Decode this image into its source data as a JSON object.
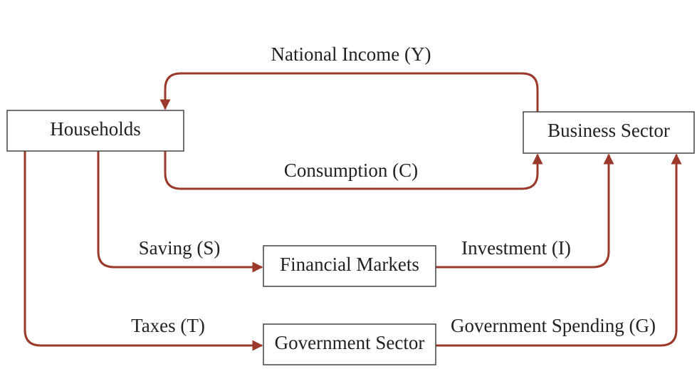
{
  "nodes": [
    {
      "label": "Households"
    },
    {
      "label": "Business Sector"
    },
    {
      "label": "Financial Markets"
    },
    {
      "label": "Government Sector"
    }
  ],
  "edges": [
    {
      "label": "National Income (Y)"
    },
    {
      "label": "Consumption (C)"
    },
    {
      "label": "Saving (S)"
    },
    {
      "label": "Investment (I)"
    },
    {
      "label": "Taxes (T)"
    },
    {
      "label": "Government Spending (G)"
    }
  ]
}
